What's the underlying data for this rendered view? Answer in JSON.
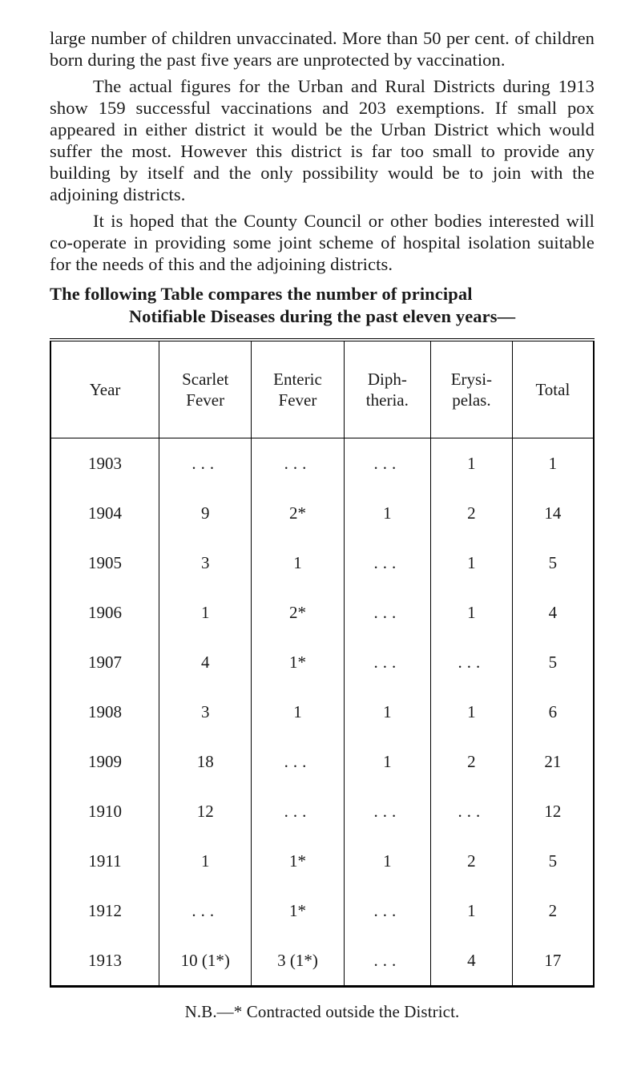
{
  "paragraphs": {
    "p1_a": "large number of children unvaccinated. More than 50 per cent. of children born during the past five years are unprotected by vaccination.",
    "p2_a": "The actual figures for the Urban and Rural Districts during 1913 show 159 successful vaccina­tions and 203 exemptions. If small pox appeared in either district it would be the Urban District which would suffer the most. However this dis­trict is far too small to provide any building by itself and the only possibility would be to join with the adjoining districts.",
    "p3_a": "It is hoped that the County Council or other bodies interested will co-operate in providing some joint scheme of hospital isolation suitable for the needs of this and the adjoining districts."
  },
  "heading": "The following Table compares the number of principal",
  "subheading": "Notifiable Diseases during the past eleven years—",
  "table": {
    "columns": [
      "Year",
      "Scarlet\nFever",
      "Enteric\nFever",
      "Diph-\ntheria.",
      "Erysi-\npelas.",
      "Total"
    ],
    "rows": [
      [
        "1903",
        "...",
        "...",
        "...",
        "1",
        "1"
      ],
      [
        "1904",
        "9",
        "2*",
        "1",
        "2",
        "14"
      ],
      [
        "1905",
        "3",
        "1",
        "...",
        "1",
        "5"
      ],
      [
        "1906",
        "1",
        "2*",
        "...",
        "1",
        "4"
      ],
      [
        "1907",
        "4",
        "1*",
        "...",
        "...",
        "5"
      ],
      [
        "1908",
        "3",
        "1",
        "1",
        "1",
        "6"
      ],
      [
        "1909",
        "18",
        "...",
        "1",
        "2",
        "21"
      ],
      [
        "1910",
        "12",
        "...",
        "...",
        "...",
        "12"
      ],
      [
        "1911",
        "1",
        "1*",
        "1",
        "2",
        "5"
      ],
      [
        "1912",
        "...",
        "1*",
        "...",
        "1",
        "2"
      ],
      [
        "1913",
        "10 (1*)",
        "3 (1*)",
        "...",
        "4",
        "17"
      ]
    ]
  },
  "footnote": "N.B.—* Contracted outside the District."
}
